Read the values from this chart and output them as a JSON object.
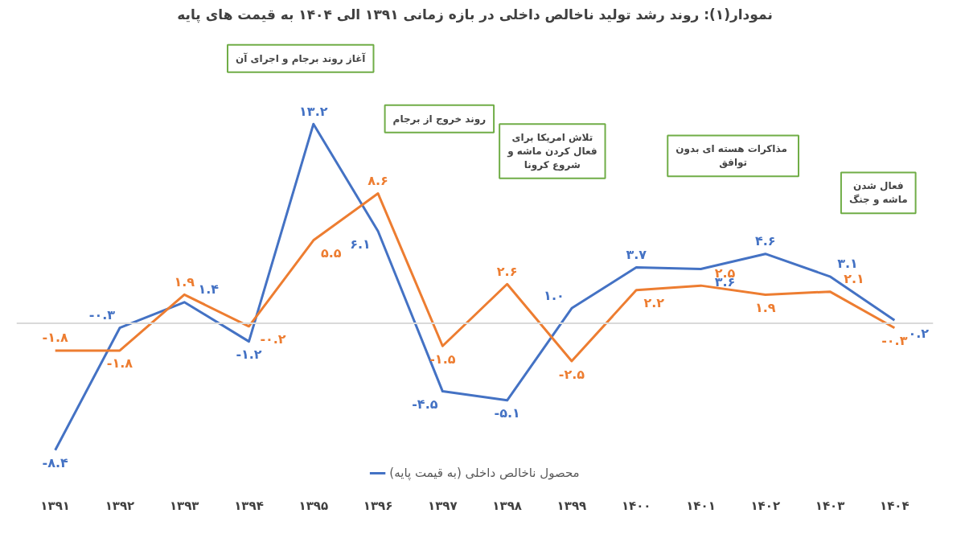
{
  "chart_data": {
    "type": "line",
    "title": "نمودار(۱): روند رشد تولید ناخالص داخلی در بازه زمانی ۱۳۹۱ الی ۱۴۰۴ به قیمت های پایه",
    "categories": [
      "۱۳۹۱",
      "۱۳۹۲",
      "۱۳۹۳",
      "۱۳۹۴",
      "۱۳۹۵",
      "۱۳۹۶",
      "۱۳۹۷",
      "۱۳۹۸",
      "۱۳۹۹",
      "۱۴۰۰",
      "۱۴۰۱",
      "۱۴۰۲",
      "۱۴۰۳",
      "۱۴۰۴"
    ],
    "series": [
      {
        "name": "محصول ناخالص داخلی (به قیمت پایه)",
        "color": "#4472c4",
        "values": [
          -8.4,
          -0.3,
          1.4,
          -1.2,
          13.2,
          6.1,
          -4.5,
          -5.1,
          1.0,
          3.7,
          3.6,
          4.6,
          3.1,
          0.2
        ],
        "value_labels": [
          "-۸.۴",
          "-۰.۳",
          "۱.۴",
          "-۱.۲",
          "۱۳.۲",
          "۶.۱",
          "-۴.۵",
          "-۵.۱",
          "۱.۰",
          "۳.۷",
          "۳.۶",
          "۴.۶",
          "۳.۱",
          "۰.۲"
        ]
      },
      {
        "color": "#ed7d31",
        "values": [
          -1.8,
          -1.8,
          1.9,
          -0.2,
          5.5,
          8.6,
          -1.5,
          2.6,
          -2.5,
          2.2,
          2.5,
          1.9,
          2.1,
          -0.3
        ],
        "value_labels": [
          "-۱.۸",
          "-۱.۸",
          "۱.۹",
          "-۰.۲",
          "۵.۵",
          "۸.۶",
          "-۱.۵",
          "۲.۶",
          "-۲.۵",
          "۲.۲",
          "۲.۵",
          "۱.۹",
          "۲.۱",
          "-۰.۳"
        ]
      }
    ],
    "annotations": [
      "آغاز روند برجام و اجرای آن",
      "روند خروج از برجام",
      "تلاش امریکا برای\nفعال کردن ماشه و\nشروع کرونا",
      "مذاکرات هسته ای  بدون\nتوافق",
      "فعال شدن\nماشه و جنگ"
    ],
    "ref_lines": [
      {
        "axis": "y",
        "value": 0,
        "color": "#d9d9d9"
      }
    ],
    "data_labels": true,
    "legend": "bottom",
    "grid": false,
    "marker": "none",
    "line_style": "solid"
  }
}
